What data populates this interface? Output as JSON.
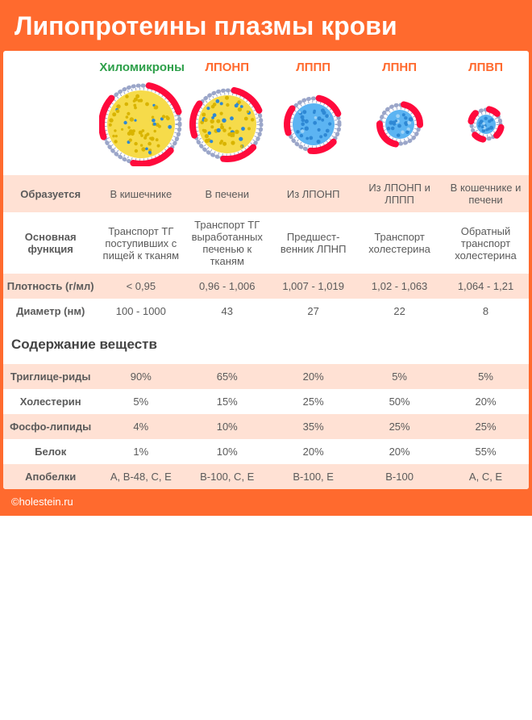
{
  "title": "Липопротеины плазмы крови",
  "footer": "©holestein.ru",
  "colors": {
    "accent": "#ff6a2e",
    "green": "#2ea04a",
    "band": "#ffe1d4",
    "membrane": "#9ba6c9",
    "arcRed": "#ff0a3c",
    "coreYellow": "#f6db4a",
    "coreBlue": "#5cb4f2",
    "dotYellow": "#d9b400",
    "dotBlue": "#2e88d4"
  },
  "columns": [
    {
      "key": "chylo",
      "label": "Хиломикроны",
      "green": true
    },
    {
      "key": "vldl",
      "label": "ЛПОНП"
    },
    {
      "key": "idl",
      "label": "ЛППП"
    },
    {
      "key": "ldl",
      "label": "ЛПНП"
    },
    {
      "key": "hdl",
      "label": "ЛПВП"
    }
  ],
  "particles": {
    "chylo": {
      "r": 48,
      "core": "yellow",
      "arcs": 3,
      "arcLen": 60
    },
    "vldl": {
      "r": 42,
      "core": "yellow",
      "arcs": 3,
      "arcLen": 55
    },
    "idl": {
      "r": 32,
      "core": "blue",
      "arcs": 3,
      "arcLen": 55
    },
    "ldl": {
      "r": 24,
      "core": "blue",
      "arcs": 2,
      "arcLen": 80
    },
    "hdl": {
      "r": 18,
      "core": "blue",
      "arcs": 4,
      "arcLen": 35
    }
  },
  "rows": [
    {
      "id": "formed",
      "label": "Образуется",
      "band": true,
      "cells": [
        "В кишечнике",
        "В печени",
        "Из ЛПОНП",
        "Из ЛПОНП и ЛППП",
        "В кошечнике и печени"
      ]
    },
    {
      "id": "function",
      "label": "Основная функция",
      "band": false,
      "cells": [
        "Транспорт ТГ поступивших с пищей к тканям",
        "Транспорт ТГ выработанных печенью к тканям",
        "Предшест-венник ЛПНП",
        "Транспорт холестерина",
        "Обратный транспорт холестерина"
      ]
    },
    {
      "id": "density",
      "label": "Плотность (г/мл)",
      "band": true,
      "cells": [
        "< 0,95",
        "0,96 - 1,006",
        "1,007 - 1,019",
        "1,02 - 1,063",
        "1,064 - 1,21"
      ]
    },
    {
      "id": "diameter",
      "label": "Диаметр (нм)",
      "band": false,
      "cells": [
        "100 - 1000",
        "43",
        "27",
        "22",
        "8"
      ]
    }
  ],
  "section2": "Содержание веществ",
  "rows2": [
    {
      "id": "tg",
      "label": "Триглице-риды",
      "band": true,
      "cells": [
        "90%",
        "65%",
        "20%",
        "5%",
        "5%"
      ]
    },
    {
      "id": "chol",
      "label": "Холестерин",
      "band": false,
      "cells": [
        "5%",
        "15%",
        "25%",
        "50%",
        "20%"
      ]
    },
    {
      "id": "phos",
      "label": "Фосфо-липиды",
      "band": true,
      "cells": [
        "4%",
        "10%",
        "35%",
        "25%",
        "25%"
      ]
    },
    {
      "id": "prot",
      "label": "Белок",
      "band": false,
      "cells": [
        "1%",
        "10%",
        "20%",
        "20%",
        "55%"
      ]
    },
    {
      "id": "apo",
      "label": "Апобелки",
      "band": true,
      "cells": [
        "A, B-48, C, E",
        "B-100, C, E",
        "B-100, E",
        "B-100",
        "A, C, E"
      ]
    }
  ]
}
